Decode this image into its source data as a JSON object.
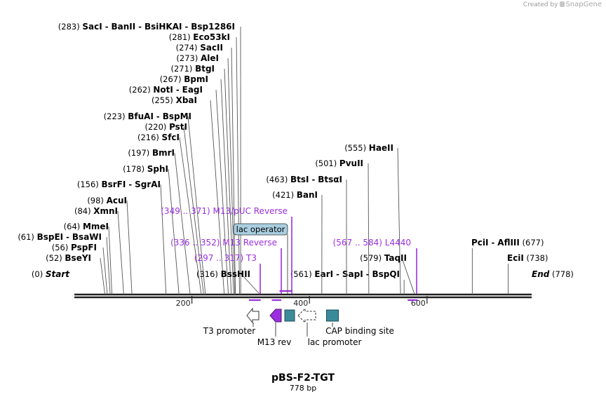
{
  "credit": {
    "prefix": "Created by",
    "brand": "SnapGene"
  },
  "plasmid": {
    "name": "pBS-F2-TGT",
    "length_label": "778 bp",
    "length": 778
  },
  "colors": {
    "feature_purple": "#9b30e0",
    "teal": "#3a8a9a",
    "line": "#555555",
    "text": "#000000"
  },
  "axis": {
    "ticks": [
      {
        "pos": 200,
        "label": "200"
      },
      {
        "pos": 400,
        "label": "400"
      },
      {
        "pos": 600,
        "label": "600"
      }
    ]
  },
  "sites": [
    {
      "pos_label": "(283)",
      "names": [
        "SacI",
        "BanII",
        "BsiHKAI",
        "Bsp1286I"
      ],
      "pos": 283
    },
    {
      "pos_label": "(281)",
      "names": [
        "Eco53kI"
      ],
      "pos": 281
    },
    {
      "pos_label": "(274)",
      "names": [
        "SacII"
      ],
      "pos": 274
    },
    {
      "pos_label": "(273)",
      "names": [
        "AleI"
      ],
      "pos": 273
    },
    {
      "pos_label": "(271)",
      "names": [
        "BtgI"
      ],
      "pos": 271
    },
    {
      "pos_label": "(267)",
      "names": [
        "BpmI"
      ],
      "pos": 267
    },
    {
      "pos_label": "(262)",
      "names": [
        "NotI",
        "EagI"
      ],
      "pos": 262
    },
    {
      "pos_label": "(255)",
      "names": [
        "XbaI"
      ],
      "pos": 255
    },
    {
      "pos_label": "(223)",
      "names": [
        "BfuAI",
        "BspMI"
      ],
      "pos": 223
    },
    {
      "pos_label": "(220)",
      "names": [
        "PstI"
      ],
      "pos": 220
    },
    {
      "pos_label": "(216)",
      "names": [
        "SfcI"
      ],
      "pos": 216
    },
    {
      "pos_label": "(197)",
      "names": [
        "BmrI"
      ],
      "pos": 197
    },
    {
      "pos_label": "(178)",
      "names": [
        "SphI"
      ],
      "pos": 178
    },
    {
      "pos_label": "(156)",
      "names": [
        "BsrFI",
        "SgrAI"
      ],
      "pos": 156
    },
    {
      "pos_label": "(98)",
      "names": [
        "AcuI"
      ],
      "pos": 98
    },
    {
      "pos_label": "(84)",
      "names": [
        "XmnI"
      ],
      "pos": 84
    },
    {
      "pos_label": "(64)",
      "names": [
        "MmeI"
      ],
      "pos": 64
    },
    {
      "pos_label": "(61)",
      "names": [
        "BspEI",
        "BsaWI"
      ],
      "pos": 61
    },
    {
      "pos_label": "(56)",
      "names": [
        "PspFI"
      ],
      "pos": 56
    },
    {
      "pos_label": "(52)",
      "names": [
        "BseYI"
      ],
      "pos": 52
    },
    {
      "pos_label": "(0)",
      "names": [
        "Start"
      ],
      "pos": 0,
      "italic": true
    },
    {
      "pos_label": "(316)",
      "names": [
        "BssHII"
      ],
      "pos": 316
    },
    {
      "pos_label": "(561)",
      "names": [
        "EarI",
        "SapI",
        "BspQI"
      ],
      "pos": 561
    },
    {
      "pos_label": "(555)",
      "names": [
        "HaeII"
      ],
      "pos": 555
    },
    {
      "pos_label": "(501)",
      "names": [
        "PvuII"
      ],
      "pos": 501
    },
    {
      "pos_label": "(463)",
      "names": [
        "BtsI",
        "BtsαI"
      ],
      "pos": 463
    },
    {
      "pos_label": "(421)",
      "names": [
        "BanI"
      ],
      "pos": 421
    },
    {
      "pos_label": "(579)",
      "names": [
        "TaqII"
      ],
      "pos": 579
    },
    {
      "pos_label": "(677)",
      "names": [
        "PciI",
        "AflIII"
      ],
      "pos": 677,
      "label_after": true
    },
    {
      "pos_label": "(738)",
      "names": [
        "EciI"
      ],
      "pos": 738,
      "label_after": true
    },
    {
      "pos_label": "(778)",
      "names": [
        "End"
      ],
      "pos": 778,
      "label_after": true,
      "italic": true
    }
  ],
  "primers": [
    {
      "range_label": "(349 .. 371)",
      "name": "M13/pUC Reverse",
      "start": 349,
      "end": 371
    },
    {
      "range_label": "(336 .. 352)",
      "name": "M13 Reverse",
      "start": 336,
      "end": 352
    },
    {
      "range_label": "(297 .. 317)",
      "name": "T3",
      "start": 297,
      "end": 317
    },
    {
      "range_label": "(567 .. 584)",
      "name": "L4440",
      "start": 567,
      "end": 584
    }
  ],
  "lac_operator": {
    "label": "lac operator",
    "start": 378,
    "end": 394
  },
  "features": [
    {
      "label": "T3 promoter",
      "start": 295,
      "end": 313,
      "kind": "arrow-left-white",
      "row": "top"
    },
    {
      "label": "M13 rev",
      "start": 343,
      "end": 360,
      "kind": "arrow-left-purple",
      "row": "bottom"
    },
    {
      "label": "lac operator",
      "start": 378,
      "end": 394,
      "kind": "box-teal",
      "row": "none"
    },
    {
      "label": "lac promoter",
      "start": 403,
      "end": 433,
      "kind": "arrow-left-white",
      "row": "bottom"
    },
    {
      "label": "CAP binding site",
      "start": 448,
      "end": 469,
      "kind": "box-teal",
      "row": "top"
    }
  ]
}
